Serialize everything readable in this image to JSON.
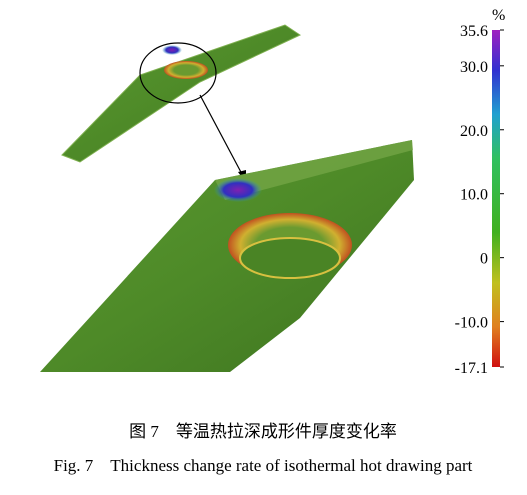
{
  "figure": {
    "colorbar": {
      "unit": "%",
      "range": [
        -17.1,
        35.6
      ],
      "ticks": [
        35.6,
        {
          "value": 30,
          "label": "30.0"
        },
        {
          "value": 20,
          "label": "20.0"
        },
        {
          "value": 10,
          "label": "10.0"
        },
        0,
        {
          "value": -10,
          "label": "-10.0"
        },
        -17.1
      ]
    },
    "caption_cn": "图 7　等温热拉深成形件厚度变化率",
    "caption_en": "Fig. 7　Thickness change rate of isothermal hot drawing part"
  }
}
